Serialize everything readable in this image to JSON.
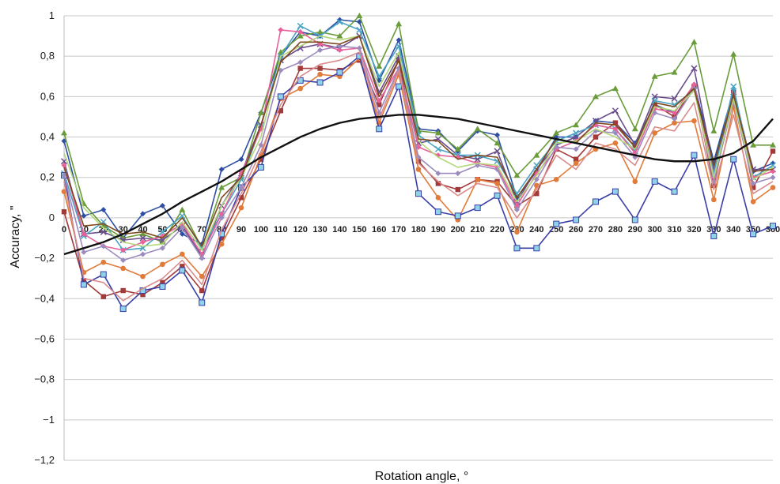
{
  "chart_data": {
    "type": "line",
    "xlabel": "Rotation angle, °",
    "ylabel": "Accuracy, \"",
    "x": [
      0,
      10,
      20,
      30,
      40,
      50,
      60,
      70,
      80,
      90,
      100,
      110,
      120,
      130,
      140,
      150,
      160,
      170,
      180,
      190,
      200,
      210,
      220,
      230,
      240,
      250,
      260,
      270,
      280,
      290,
      300,
      310,
      320,
      330,
      340,
      350,
      360
    ],
    "x_tick_labels": [
      "0",
      "10",
      "20",
      "30",
      "40",
      "50",
      "60",
      "70",
      "80",
      "90",
      "100",
      "110",
      "120",
      "130",
      "140",
      "150",
      "160",
      "170",
      "180",
      "190",
      "200",
      "210",
      "220",
      "230",
      "240",
      "250",
      "260",
      "270",
      "280",
      "290",
      "300",
      "310",
      "320",
      "330",
      "340",
      "350",
      "360"
    ],
    "y_tick_labels": [
      "1",
      "0,8",
      "0,6",
      "0,4",
      "0,2",
      "0",
      "−0,2",
      "−0,4",
      "−0,6",
      "−0,8",
      "−1",
      "−1,2"
    ],
    "y_ticks": [
      1,
      0.8,
      0.6,
      0.4,
      0.2,
      0,
      -0.2,
      -0.4,
      -0.6,
      -0.8,
      -1,
      -1.2
    ],
    "ylim": [
      -1.2,
      1.0
    ],
    "xlim": [
      0,
      360
    ],
    "grid": "horizontal",
    "legend": "none",
    "series": [
      {
        "color": "#2E4FA3",
        "marker": "diamond",
        "values": [
          0.38,
          0.01,
          0.04,
          -0.1,
          0.02,
          0.06,
          -0.08,
          -0.13,
          0.24,
          0.29,
          0.52,
          0.8,
          0.92,
          0.9,
          0.98,
          0.97,
          0.68,
          0.88,
          0.44,
          0.43,
          0.33,
          0.43,
          0.41,
          0.1,
          0.23,
          0.4,
          0.4,
          0.48,
          0.47,
          0.37,
          0.56,
          0.52,
          0.66,
          0.28,
          0.63,
          0.23,
          0.27
        ]
      },
      {
        "color": "#A23A3A",
        "marker": "square",
        "values": [
          0.03,
          -0.31,
          -0.39,
          -0.36,
          -0.38,
          -0.32,
          -0.24,
          -0.36,
          -0.1,
          0.1,
          0.29,
          0.53,
          0.74,
          0.74,
          0.73,
          0.78,
          0.56,
          0.78,
          0.28,
          0.17,
          0.14,
          0.19,
          0.18,
          0.06,
          0.12,
          0.34,
          0.29,
          0.4,
          0.47,
          0.35,
          0.56,
          0.5,
          0.65,
          0.16,
          0.62,
          0.15,
          0.33
        ]
      },
      {
        "color": "#6A9C3A",
        "marker": "triangle",
        "values": [
          0.42,
          0.07,
          -0.04,
          -0.1,
          -0.08,
          -0.12,
          0.04,
          -0.15,
          0.15,
          0.2,
          0.52,
          0.82,
          0.9,
          0.92,
          0.9,
          1.0,
          0.75,
          0.96,
          0.43,
          0.42,
          0.34,
          0.44,
          0.37,
          0.21,
          0.31,
          0.42,
          0.46,
          0.6,
          0.64,
          0.44,
          0.7,
          0.72,
          0.87,
          0.43,
          0.81,
          0.36,
          0.36
        ]
      },
      {
        "color": "#6A4E8C",
        "marker": "x",
        "values": [
          0.28,
          -0.08,
          -0.07,
          -0.11,
          -0.1,
          -0.11,
          -0.04,
          -0.19,
          0.06,
          0.22,
          0.46,
          0.78,
          0.84,
          0.86,
          0.84,
          0.9,
          0.62,
          0.8,
          0.37,
          0.39,
          0.31,
          0.29,
          0.33,
          0.08,
          0.24,
          0.36,
          0.4,
          0.48,
          0.53,
          0.36,
          0.6,
          0.59,
          0.74,
          0.24,
          0.6,
          0.24,
          0.24
        ]
      },
      {
        "color": "#4BA3C3",
        "marker": "x",
        "values": [
          0.22,
          -0.09,
          -0.02,
          -0.16,
          -0.15,
          -0.07,
          0.01,
          -0.15,
          0.02,
          0.19,
          0.45,
          0.8,
          0.95,
          0.9,
          0.97,
          0.93,
          0.7,
          0.85,
          0.41,
          0.34,
          0.31,
          0.31,
          0.28,
          0.12,
          0.26,
          0.38,
          0.42,
          0.46,
          0.44,
          0.33,
          0.58,
          0.56,
          0.63,
          0.22,
          0.65,
          0.2,
          0.26
        ]
      },
      {
        "color": "#E07B39",
        "marker": "circle",
        "values": [
          0.13,
          -0.27,
          -0.22,
          -0.25,
          -0.29,
          -0.23,
          -0.18,
          -0.29,
          -0.13,
          0.05,
          0.31,
          0.59,
          0.64,
          0.71,
          0.7,
          0.79,
          0.47,
          0.71,
          0.24,
          0.1,
          -0.01,
          0.19,
          0.17,
          -0.07,
          0.16,
          0.19,
          0.27,
          0.34,
          0.37,
          0.18,
          0.42,
          0.47,
          0.48,
          0.09,
          0.55,
          0.08,
          0.15
        ]
      },
      {
        "color": "#3A3FA8",
        "marker": "box",
        "values": [
          0.21,
          -0.33,
          -0.28,
          -0.45,
          -0.36,
          -0.34,
          -0.26,
          -0.42,
          -0.08,
          0.15,
          0.25,
          0.6,
          0.68,
          0.67,
          0.72,
          0.8,
          0.44,
          0.65,
          0.12,
          0.03,
          0.01,
          0.05,
          0.11,
          -0.15,
          -0.15,
          -0.03,
          -0.01,
          0.08,
          0.13,
          -0.01,
          0.18,
          0.13,
          0.31,
          -0.09,
          0.29,
          -0.08,
          -0.04
        ]
      },
      {
        "color": "#E8619A",
        "marker": "diamond",
        "values": [
          0.26,
          -0.08,
          -0.14,
          -0.16,
          -0.12,
          -0.09,
          -0.03,
          -0.18,
          0.02,
          0.22,
          0.44,
          0.93,
          0.92,
          0.86,
          0.83,
          0.84,
          0.58,
          0.74,
          0.35,
          0.31,
          0.3,
          0.27,
          0.25,
          0.06,
          0.22,
          0.34,
          0.38,
          0.46,
          0.44,
          0.32,
          0.54,
          0.52,
          0.66,
          0.2,
          0.58,
          0.2,
          0.23
        ]
      },
      {
        "color": "#9C8BBE",
        "marker": "diamond",
        "values": [
          0.21,
          -0.17,
          -0.14,
          -0.21,
          -0.18,
          -0.15,
          -0.05,
          -0.2,
          0.0,
          0.15,
          0.36,
          0.73,
          0.77,
          0.83,
          0.85,
          0.84,
          0.52,
          0.74,
          0.3,
          0.22,
          0.22,
          0.26,
          0.24,
          0.04,
          0.19,
          0.35,
          0.34,
          0.43,
          0.42,
          0.3,
          0.52,
          0.49,
          0.64,
          0.18,
          0.58,
          0.17,
          0.2
        ]
      },
      {
        "color": "#B4D77A",
        "marker": "none",
        "values": [
          0.32,
          0.05,
          -0.05,
          -0.12,
          -0.14,
          -0.13,
          -0.02,
          -0.16,
          0.06,
          0.2,
          0.4,
          0.8,
          0.85,
          0.9,
          0.88,
          0.9,
          0.65,
          0.82,
          0.38,
          0.3,
          0.25,
          0.27,
          0.26,
          0.08,
          0.21,
          0.37,
          0.38,
          0.44,
          0.4,
          0.34,
          0.55,
          0.53,
          0.63,
          0.2,
          0.59,
          0.19,
          0.25
        ]
      },
      {
        "color": "#7E4A1E",
        "marker": "none",
        "values": [
          0.25,
          -0.04,
          -0.03,
          -0.08,
          -0.07,
          -0.1,
          0.0,
          -0.14,
          0.1,
          0.2,
          0.46,
          0.77,
          0.87,
          0.87,
          0.86,
          0.9,
          0.6,
          0.78,
          0.39,
          0.38,
          0.29,
          0.31,
          0.3,
          0.1,
          0.24,
          0.39,
          0.37,
          0.47,
          0.46,
          0.35,
          0.57,
          0.55,
          0.64,
          0.26,
          0.61,
          0.23,
          0.24
        ]
      },
      {
        "color": "#D98C8C",
        "marker": "none",
        "values": [
          0.18,
          -0.3,
          -0.32,
          -0.41,
          -0.35,
          -0.3,
          -0.21,
          -0.33,
          -0.06,
          0.12,
          0.33,
          0.56,
          0.7,
          0.76,
          0.78,
          0.82,
          0.49,
          0.73,
          0.27,
          0.18,
          0.11,
          0.17,
          0.15,
          0.0,
          0.14,
          0.31,
          0.24,
          0.37,
          0.34,
          0.26,
          0.45,
          0.43,
          0.57,
          0.14,
          0.51,
          0.12,
          0.18
        ]
      }
    ],
    "trend": {
      "color": "#111111",
      "values": [
        -0.18,
        -0.15,
        -0.12,
        -0.08,
        -0.03,
        0.02,
        0.08,
        0.13,
        0.18,
        0.24,
        0.3,
        0.35,
        0.4,
        0.44,
        0.47,
        0.49,
        0.5,
        0.51,
        0.51,
        0.5,
        0.49,
        0.47,
        0.45,
        0.43,
        0.41,
        0.39,
        0.37,
        0.35,
        0.33,
        0.31,
        0.29,
        0.28,
        0.28,
        0.29,
        0.32,
        0.38,
        0.49
      ]
    }
  }
}
